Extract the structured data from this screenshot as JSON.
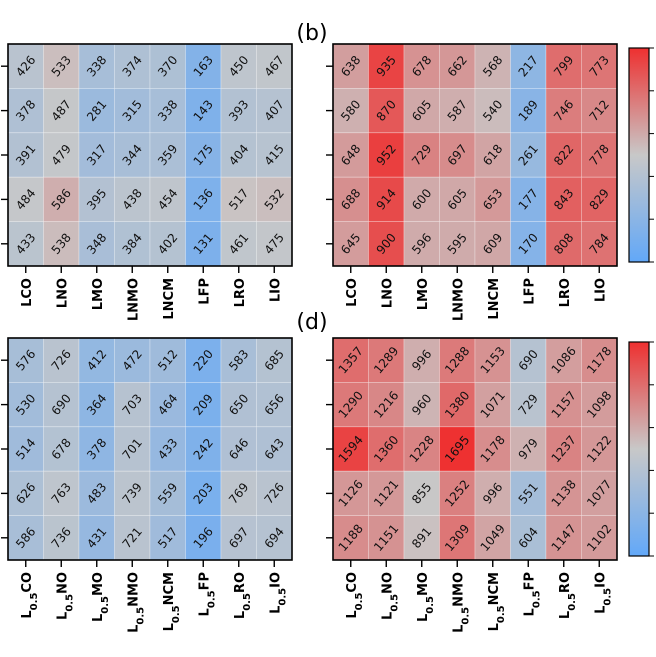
{
  "panel_labels": {
    "b": "(b)",
    "d": "(d)"
  },
  "colormap": {
    "low": "#62A8F8",
    "mid": "#C8C8C8",
    "high": "#EE3030"
  },
  "chart_data": [
    {
      "type": "heatmap",
      "panel": "a",
      "columns": [
        "LCO",
        "LNO",
        "LMO",
        "LNMO",
        "LNCM",
        "LFP",
        "LRO",
        "LIO"
      ],
      "column_subscript": "",
      "values": [
        [
          426,
          533,
          338,
          374,
          370,
          163,
          450,
          467
        ],
        [
          378,
          487,
          281,
          315,
          338,
          143,
          393,
          407
        ],
        [
          391,
          479,
          317,
          344,
          359,
          175,
          404,
          415
        ],
        [
          484,
          586,
          395,
          438,
          454,
          136,
          517,
          532
        ],
        [
          433,
          538,
          348,
          384,
          402,
          131,
          461,
          475
        ]
      ],
      "vmin": 0,
      "vmax": 1000,
      "colorbar": false
    },
    {
      "type": "heatmap",
      "panel": "b",
      "columns": [
        "LCO",
        "LNO",
        "LMO",
        "LNMO",
        "LNCM",
        "LFP",
        "LRO",
        "LIO"
      ],
      "column_subscript": "",
      "values": [
        [
          638,
          935,
          678,
          662,
          568,
          217,
          799,
          773
        ],
        [
          580,
          870,
          605,
          587,
          540,
          189,
          746,
          712
        ],
        [
          648,
          952,
          729,
          697,
          618,
          261,
          822,
          778
        ],
        [
          688,
          914,
          600,
          605,
          653,
          177,
          843,
          829
        ],
        [
          645,
          900,
          596,
          595,
          609,
          170,
          808,
          784
        ]
      ],
      "vmin": 0,
      "vmax": 1000,
      "colorbar": true
    },
    {
      "type": "heatmap",
      "panel": "c",
      "columns": [
        "L",
        "L",
        "L",
        "L",
        "L",
        "L",
        "L",
        "L"
      ],
      "column_suffixes": [
        "CO",
        "NO",
        "MO",
        "NMO",
        "NCM",
        "FP",
        "RO",
        "IO"
      ],
      "column_subscript": "0.5",
      "values": [
        [
          576,
          726,
          412,
          472,
          512,
          220,
          583,
          685
        ],
        [
          530,
          690,
          364,
          703,
          464,
          209,
          650,
          656
        ],
        [
          514,
          678,
          378,
          701,
          433,
          242,
          646,
          643
        ],
        [
          626,
          763,
          483,
          739,
          559,
          203,
          769,
          726
        ],
        [
          586,
          736,
          431,
          721,
          517,
          196,
          697,
          694
        ]
      ],
      "vmin": 0,
      "vmax": 1700,
      "colorbar": false
    },
    {
      "type": "heatmap",
      "panel": "d",
      "columns": [
        "L",
        "L",
        "L",
        "L",
        "L",
        "L",
        "L",
        "L"
      ],
      "column_suffixes": [
        "CO",
        "NO",
        "MO",
        "NMO",
        "NCM",
        "FP",
        "RO",
        "IO"
      ],
      "column_subscript": "0.5",
      "values": [
        [
          1357,
          1289,
          996,
          1288,
          1153,
          690,
          1086,
          1178
        ],
        [
          1290,
          1216,
          960,
          1380,
          1071,
          729,
          1157,
          1098
        ],
        [
          1594,
          1360,
          1228,
          1695,
          1178,
          979,
          1237,
          1122
        ],
        [
          1126,
          1121,
          855,
          1252,
          996,
          551,
          1138,
          1077
        ],
        [
          1188,
          1151,
          891,
          1309,
          1049,
          604,
          1147,
          1102
        ]
      ],
      "vmin": 0,
      "vmax": 1700,
      "colorbar": true
    }
  ]
}
